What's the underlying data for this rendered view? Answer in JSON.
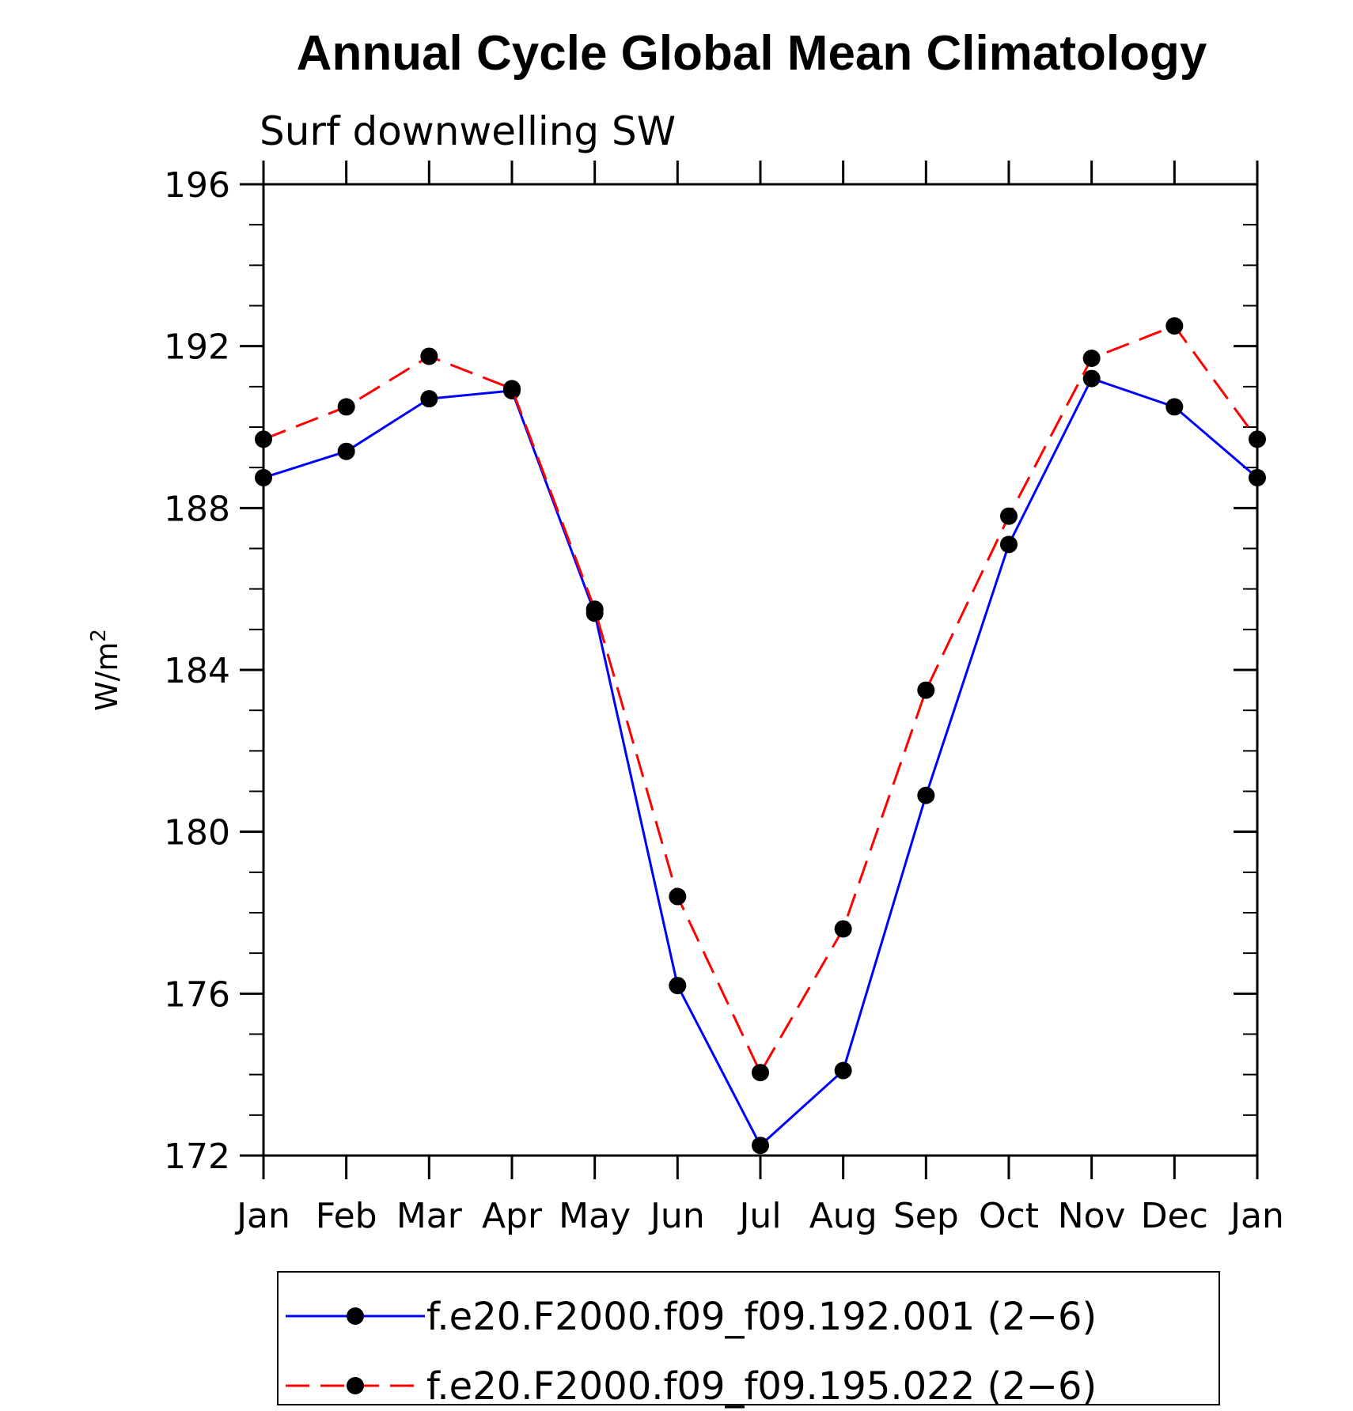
{
  "chart_data": {
    "type": "line",
    "title": "Annual Cycle Global Mean Climatology",
    "subtitle": "Surf downwelling SW",
    "xlabel": "",
    "ylabel": "W/m",
    "ylabel_superscript": "2",
    "ylim": [
      172,
      196
    ],
    "yticks": [
      172,
      176,
      180,
      184,
      188,
      192,
      196
    ],
    "categories": [
      "Jan",
      "Feb",
      "Mar",
      "Apr",
      "May",
      "Jun",
      "Jul",
      "Aug",
      "Sep",
      "Oct",
      "Nov",
      "Dec",
      "Jan"
    ],
    "grid": false,
    "legend_position": "bottom",
    "series": [
      {
        "name": "f.e20.F2000.f09_f09.192.001 (2−6)",
        "color": "#0000ff",
        "line_style": "solid",
        "marker": "circle",
        "values": [
          188.75,
          189.4,
          190.7,
          190.9,
          185.4,
          176.2,
          172.25,
          174.1,
          180.9,
          187.1,
          191.2,
          190.5,
          188.75
        ]
      },
      {
        "name": "f.e20.F2000.f09_f09.195.022 (2−6)",
        "color": "#ff0000",
        "line_style": "dashed",
        "marker": "circle",
        "values": [
          189.7,
          190.5,
          191.75,
          190.95,
          185.5,
          178.4,
          174.05,
          177.6,
          183.5,
          187.8,
          191.7,
          192.5,
          189.7
        ]
      }
    ]
  }
}
